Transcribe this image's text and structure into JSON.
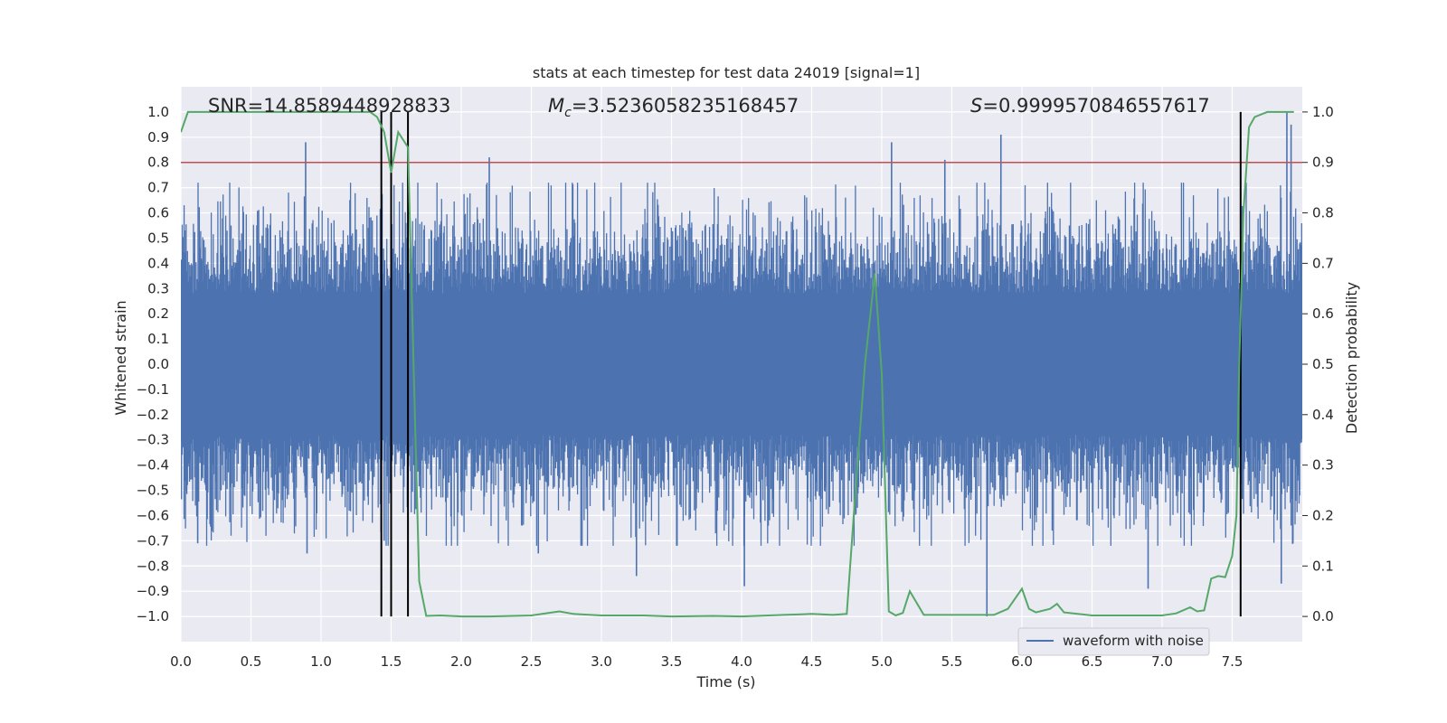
{
  "chart_data": {
    "type": "line",
    "title": "stats at each timestep for test data 24019 [signal=1]",
    "xlabel": "Time (s)",
    "ylabel": "Whitened strain",
    "ylabel_right": "Detection probability",
    "xlim": [
      0.0,
      8.0
    ],
    "ylim": [
      -1.1,
      1.1
    ],
    "ylim_right": [
      -0.05,
      1.05
    ],
    "x_ticks": [
      0.0,
      0.5,
      1.0,
      1.5,
      2.0,
      2.5,
      3.0,
      3.5,
      4.0,
      4.5,
      5.0,
      5.5,
      6.0,
      6.5,
      7.0,
      7.5
    ],
    "x_tick_labels": [
      "0.0",
      "0.5",
      "1.0",
      "1.5",
      "2.0",
      "2.5",
      "3.0",
      "3.5",
      "4.0",
      "4.5",
      "5.0",
      "5.5",
      "6.0",
      "6.5",
      "7.0",
      "7.5"
    ],
    "y_ticks": [
      1.0,
      0.9,
      0.8,
      0.7,
      0.6,
      0.5,
      0.4,
      0.3,
      0.2,
      0.1,
      0.0,
      -0.1,
      -0.2,
      -0.3,
      -0.4,
      -0.5,
      -0.6,
      -0.7,
      -0.8,
      -0.9,
      -1.0
    ],
    "y_tick_labels": [
      "1.0",
      "0.9",
      "0.8",
      "0.7",
      "0.6",
      "0.5",
      "0.4",
      "0.3",
      "0.2",
      "0.1",
      "0.0",
      "−0.1",
      "−0.2",
      "−0.3",
      "−0.4",
      "−0.5",
      "−0.6",
      "−0.7",
      "−0.8",
      "−0.9",
      "−1.0"
    ],
    "y_right_ticks": [
      1.0,
      0.9,
      0.8,
      0.7,
      0.6,
      0.5,
      0.4,
      0.3,
      0.2,
      0.1,
      0.0
    ],
    "y_right_tick_labels": [
      "1.0",
      "0.9",
      "0.8",
      "0.7",
      "0.6",
      "0.5",
      "0.4",
      "0.3",
      "0.2",
      "0.1",
      "0.0"
    ],
    "grid": true,
    "annotations": {
      "snr": "SNR=14.8589448928833",
      "mc_symbol": "M",
      "mc_sub": "c",
      "mc_value": "=3.5236058235168457",
      "s_symbol": "S",
      "s_value": "=0.9999570846557617"
    },
    "legend": {
      "entries": [
        "waveform with noise"
      ],
      "placement": "lower-right"
    },
    "threshold_line": {
      "y_right": 0.9,
      "color": "#c44e52"
    },
    "vertical_lines_x": [
      1.43,
      1.5,
      1.62,
      7.56
    ],
    "colors": {
      "waveform": "#4c72b0",
      "probability": "#55a868",
      "vlines": "#000000",
      "background": "#eaeaf2"
    },
    "series": [
      {
        "name": "waveform with noise",
        "axis": "left",
        "style": "dense-noise",
        "typical_band": [
          -0.4,
          0.4
        ],
        "peak_samples": [
          {
            "x": 0.89,
            "y": 0.88
          },
          {
            "x": 0.12,
            "y": -0.71
          },
          {
            "x": 0.9,
            "y": -0.75
          },
          {
            "x": 1.45,
            "y": -0.7
          },
          {
            "x": 2.2,
            "y": 0.82
          },
          {
            "x": 2.55,
            "y": -0.75
          },
          {
            "x": 3.25,
            "y": -0.84
          },
          {
            "x": 4.02,
            "y": -0.88
          },
          {
            "x": 5.07,
            "y": 0.88
          },
          {
            "x": 5.45,
            "y": 0.81
          },
          {
            "x": 5.75,
            "y": -1.0
          },
          {
            "x": 5.85,
            "y": 0.91
          },
          {
            "x": 6.9,
            "y": -0.89
          },
          {
            "x": 7.89,
            "y": 1.0
          },
          {
            "x": 7.92,
            "y": 0.95
          },
          {
            "x": 7.85,
            "y": -0.87
          }
        ]
      },
      {
        "name": "detection probability",
        "axis": "right",
        "x": [
          0.0,
          0.05,
          0.1,
          0.2,
          0.3,
          0.4,
          0.5,
          0.6,
          0.7,
          0.8,
          0.9,
          1.0,
          1.1,
          1.2,
          1.3,
          1.35,
          1.4,
          1.45,
          1.5,
          1.55,
          1.62,
          1.66,
          1.7,
          1.75,
          1.85,
          2.0,
          2.2,
          2.5,
          2.7,
          2.8,
          3.0,
          3.3,
          3.5,
          3.8,
          4.0,
          4.3,
          4.5,
          4.65,
          4.75,
          4.8,
          4.88,
          4.95,
          5.0,
          5.05,
          5.1,
          5.15,
          5.2,
          5.3,
          5.5,
          5.8,
          5.9,
          6.0,
          6.05,
          6.1,
          6.2,
          6.25,
          6.3,
          6.5,
          7.0,
          7.1,
          7.2,
          7.25,
          7.3,
          7.35,
          7.4,
          7.45,
          7.5,
          7.53,
          7.55,
          7.58,
          7.62,
          7.66,
          7.75,
          7.85,
          7.94
        ],
        "values": [
          0.96,
          1.0,
          1.0,
          1.0,
          1.0,
          1.0,
          1.0,
          1.0,
          1.0,
          1.0,
          1.0,
          1.0,
          1.0,
          1.0,
          1.0,
          1.0,
          0.99,
          0.96,
          0.88,
          0.96,
          0.93,
          0.5,
          0.07,
          0.001,
          0.002,
          0.0,
          0.0,
          0.002,
          0.01,
          0.005,
          0.002,
          0.002,
          0.0,
          0.001,
          0.0,
          0.003,
          0.005,
          0.003,
          0.005,
          0.2,
          0.5,
          0.68,
          0.48,
          0.01,
          0.002,
          0.007,
          0.05,
          0.003,
          0.003,
          0.003,
          0.015,
          0.055,
          0.015,
          0.008,
          0.015,
          0.025,
          0.008,
          0.002,
          0.002,
          0.006,
          0.018,
          0.01,
          0.012,
          0.075,
          0.08,
          0.078,
          0.12,
          0.2,
          0.5,
          0.8,
          0.97,
          0.99,
          1.0,
          1.0,
          1.0
        ]
      }
    ]
  }
}
